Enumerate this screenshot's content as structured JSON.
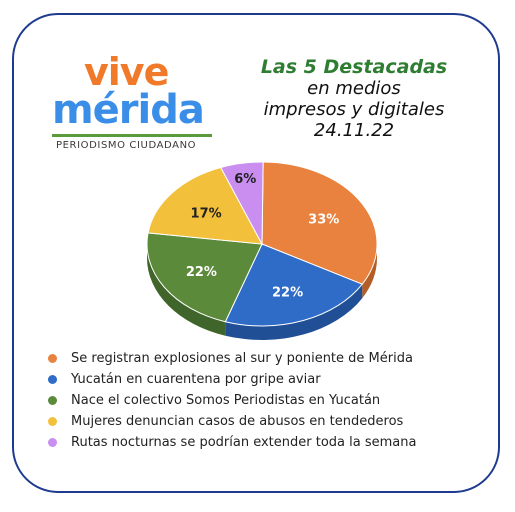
{
  "logo": {
    "word1": "vive",
    "word2": "mérida",
    "tagline": "PERIODISMO CIUDADANO"
  },
  "title": {
    "line1": "Las 5 Destacadas",
    "line2": "en medios",
    "line3": "impresos y digitales",
    "line4": "24.11.22"
  },
  "chart_data": {
    "type": "pie",
    "title": "Las 5 Destacadas en medios impresos y digitales 24.11.22",
    "slices": [
      {
        "label": "Se registran explosiones al sur y poniente de Mérida",
        "value": 33,
        "display": "33%",
        "color": "#e8823e",
        "side": "#b35e26"
      },
      {
        "label": "Yucatán en cuarentena por gripe aviar",
        "value": 22,
        "display": "22%",
        "color": "#2f6cc8",
        "side": "#214f96"
      },
      {
        "label": "Nace el colectivo Somos Periodistas en Yucatán",
        "value": 22,
        "display": "22%",
        "color": "#5b8a3a",
        "side": "#40652a"
      },
      {
        "label": "Mujeres denuncian casos de abusos en tendederos",
        "value": 17,
        "display": "17%",
        "color": "#f2c03a",
        "side": "#c99a22"
      },
      {
        "label": "Rutas nocturnas se podrían extender toda la semana",
        "value": 6,
        "display": "6%",
        "color": "#c98ef0",
        "side": "#9e62c8"
      }
    ],
    "legend_position": "bottom"
  }
}
